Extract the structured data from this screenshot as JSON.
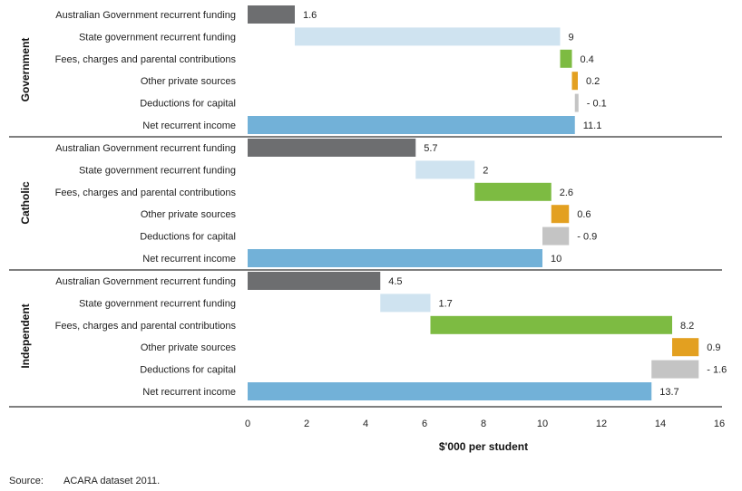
{
  "chart_data": {
    "type": "bar",
    "subtype": "waterfall",
    "xlabel": "$'000 per student",
    "xlim": [
      0,
      16
    ],
    "xticks": [
      0,
      2,
      4,
      6,
      8,
      10,
      12,
      14,
      16
    ],
    "categories": [
      "Australian Government recurrent funding",
      "State government recurrent funding",
      "Fees, charges and parental contributions",
      "Other private sources",
      "Deductions for capital",
      "Net recurrent income"
    ],
    "category_colors": [
      "#6d6e70",
      "#cfe3f0",
      "#7dbb42",
      "#e3a020",
      "#c4c4c4",
      "#72b1d8"
    ],
    "groups": [
      {
        "name": "Government",
        "values": [
          1.6,
          9,
          0.4,
          0.2,
          -0.1,
          11.1
        ],
        "value_labels": [
          "1.6",
          "9",
          "0.4",
          "0.2",
          "- 0.1",
          "11.1"
        ]
      },
      {
        "name": "Catholic",
        "values": [
          5.7,
          2,
          2.6,
          0.6,
          -0.9,
          10
        ],
        "value_labels": [
          "5.7",
          "2",
          "2.6",
          "0.6",
          "- 0.9",
          "10"
        ]
      },
      {
        "name": "Independent",
        "values": [
          4.5,
          1.7,
          8.2,
          0.9,
          -1.6,
          13.7
        ],
        "value_labels": [
          "4.5",
          "1.7",
          "8.2",
          "0.9",
          "- 1.6",
          "13.7"
        ]
      }
    ]
  },
  "source": {
    "prefix": "Source:",
    "text": "ACARA dataset 2011."
  }
}
